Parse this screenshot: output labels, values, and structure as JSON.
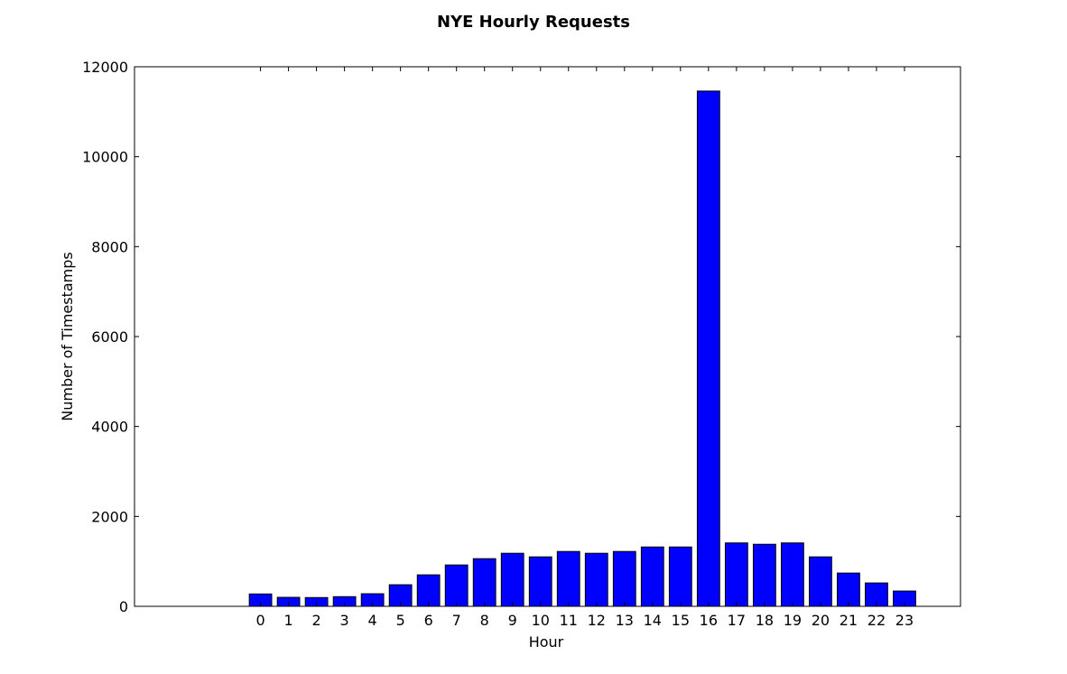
{
  "chart_data": {
    "type": "bar",
    "title": "NYE Hourly Requests",
    "xlabel": "Hour",
    "ylabel": "Number of Timestamps",
    "categories": [
      "0",
      "1",
      "2",
      "3",
      "4",
      "5",
      "6",
      "7",
      "8",
      "9",
      "10",
      "11",
      "12",
      "13",
      "14",
      "15",
      "16",
      "17",
      "18",
      "19",
      "20",
      "21",
      "22",
      "23"
    ],
    "values": [
      275,
      200,
      195,
      215,
      280,
      480,
      700,
      920,
      1060,
      1180,
      1100,
      1220,
      1180,
      1220,
      1320,
      1320,
      11460,
      1410,
      1380,
      1410,
      1100,
      740,
      520,
      340
    ],
    "ylim": [
      0,
      12000
    ],
    "yticks": [
      0,
      2000,
      4000,
      6000,
      8000,
      10000,
      12000
    ],
    "xlim": [
      -4.5,
      25
    ],
    "grid": false,
    "bar_color": "#0000ff",
    "edge_color": "#000000"
  }
}
